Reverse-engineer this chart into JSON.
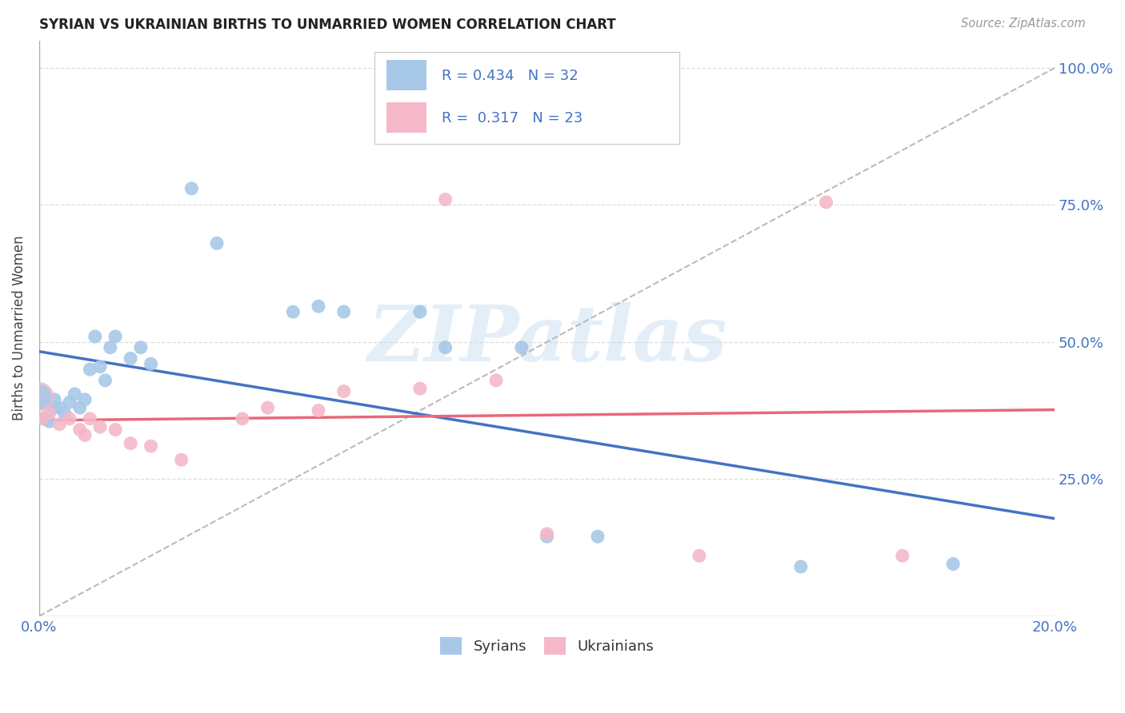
{
  "title": "SYRIAN VS UKRAINIAN BIRTHS TO UNMARRIED WOMEN CORRELATION CHART",
  "source": "Source: ZipAtlas.com",
  "ylabel": "Births to Unmarried Women",
  "xlim": [
    0.0,
    0.2
  ],
  "ylim": [
    0.0,
    1.05
  ],
  "ytick_values": [
    0.25,
    0.5,
    0.75,
    1.0
  ],
  "ytick_labels": [
    "25.0%",
    "50.0%",
    "75.0%",
    "100.0%"
  ],
  "xtick_values": [
    0.0,
    0.04,
    0.08,
    0.12,
    0.16,
    0.2
  ],
  "xtick_labels": [
    "0.0%",
    "",
    "",
    "",
    "",
    "20.0%"
  ],
  "syrian_color": "#a8c8e8",
  "ukrainian_color": "#f4b8c8",
  "syrian_line_color": "#4472c4",
  "ukrainian_line_color": "#e8687a",
  "legend_text_color": "#4472c4",
  "r_syrian": 0.434,
  "n_syrian": 32,
  "r_ukrainian": 0.317,
  "n_ukrainian": 23,
  "syrians_x": [
    0.0005,
    0.001,
    0.002,
    0.003,
    0.003,
    0.004,
    0.005,
    0.006,
    0.007,
    0.008,
    0.009,
    0.01,
    0.011,
    0.012,
    0.013,
    0.014,
    0.015,
    0.018,
    0.02,
    0.022,
    0.03,
    0.035,
    0.05,
    0.055,
    0.06,
    0.075,
    0.08,
    0.095,
    0.1,
    0.11,
    0.15,
    0.18
  ],
  "syrians_y": [
    0.39,
    0.36,
    0.355,
    0.38,
    0.395,
    0.38,
    0.37,
    0.39,
    0.405,
    0.38,
    0.395,
    0.45,
    0.51,
    0.455,
    0.43,
    0.49,
    0.51,
    0.47,
    0.49,
    0.46,
    0.78,
    0.68,
    0.555,
    0.565,
    0.555,
    0.555,
    0.49,
    0.49,
    0.145,
    0.145,
    0.09,
    0.095
  ],
  "ukrainians_x": [
    0.0005,
    0.002,
    0.004,
    0.006,
    0.008,
    0.009,
    0.01,
    0.012,
    0.015,
    0.018,
    0.022,
    0.028,
    0.04,
    0.045,
    0.055,
    0.06,
    0.075,
    0.08,
    0.09,
    0.1,
    0.13,
    0.155,
    0.17
  ],
  "ukrainians_y": [
    0.36,
    0.37,
    0.35,
    0.36,
    0.34,
    0.33,
    0.36,
    0.345,
    0.34,
    0.315,
    0.31,
    0.285,
    0.36,
    0.38,
    0.375,
    0.41,
    0.415,
    0.76,
    0.43,
    0.15,
    0.11,
    0.755,
    0.11
  ],
  "background_color": "#ffffff",
  "watermark_text": "ZIPatlas",
  "grid_color": "#dddddd",
  "border_color": "#aaaaaa"
}
